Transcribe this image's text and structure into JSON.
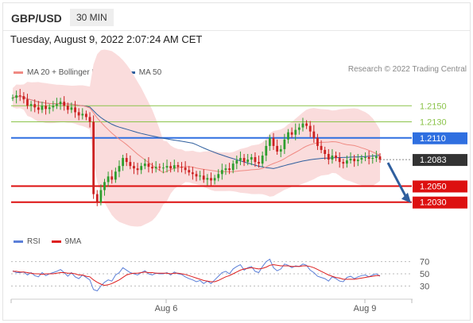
{
  "header": {
    "symbol": "GBP/USD",
    "timeframe": "30 MIN"
  },
  "timestamp": "Tuesday, August 9, 2022 2:07:24 AM CET",
  "legend_main": [
    {
      "label": "MA 20 + Bollinger Bands",
      "color": "#f08a83"
    },
    {
      "label": "MA 50",
      "color": "#2f5f9e"
    }
  ],
  "credit": "Research © 2022 Trading Central",
  "legend_rsi": [
    {
      "label": "RSI",
      "color": "#5b7fd8"
    },
    {
      "label": "9MA",
      "color": "#dd1f1f"
    }
  ],
  "colors": {
    "upCandle": "#2e9e2e",
    "downCandle": "#cc2020",
    "band": "#fadcdc",
    "resistance": "#8bc34a",
    "pivot": "#2f6fe0",
    "support": "#dd1010",
    "current": "#333333",
    "arrow": "#2f5f9e"
  },
  "chart_data": {
    "type": "candlestick",
    "ylim": [
      1.2005,
      1.2175
    ],
    "x_ticks": [
      "Aug 6",
      "Aug 9"
    ],
    "levels": [
      {
        "value": "1.2150",
        "kind": "resistance"
      },
      {
        "value": "1.2130",
        "kind": "resistance"
      },
      {
        "value": "1.2110",
        "kind": "pivot"
      },
      {
        "value": "1.2083",
        "kind": "current"
      },
      {
        "value": "1.2050",
        "kind": "support"
      },
      {
        "value": "1.2030",
        "kind": "support"
      }
    ],
    "rsi_ticks": [
      "70",
      "50",
      "30"
    ],
    "close": [
      1.216,
      1.2163,
      1.2162,
      1.2158,
      1.215,
      1.2152,
      1.2148,
      1.2145,
      1.215,
      1.2146,
      1.2148,
      1.215,
      1.2152,
      1.2155,
      1.215,
      1.2145,
      1.2148,
      1.2142,
      1.2138,
      1.214,
      1.2136,
      1.213,
      1.204,
      1.203,
      1.2045,
      1.2055,
      1.2062,
      1.2058,
      1.2068,
      1.2075,
      1.2085,
      1.208,
      1.2075,
      1.2072,
      1.207,
      1.2075,
      1.2078,
      1.2074,
      1.2072,
      1.2074,
      1.2073,
      1.2073,
      1.2075,
      1.2072,
      1.2076,
      1.2074,
      1.2073,
      1.207,
      1.2067,
      1.2065,
      1.2062,
      1.2063,
      1.2058,
      1.206,
      1.2057,
      1.206,
      1.2065,
      1.207,
      1.2072,
      1.207,
      1.2078,
      1.2082,
      1.2085,
      1.208,
      1.2083,
      1.2086,
      1.208,
      1.2078,
      1.2088,
      1.21,
      1.211,
      1.21,
      1.2093,
      1.2096,
      1.2108,
      1.2117,
      1.2114,
      1.212,
      1.2123,
      1.2128,
      1.2125,
      1.2118,
      1.211,
      1.21,
      1.2095,
      1.209,
      1.2083,
      1.2088,
      1.2085,
      1.208,
      1.2078,
      1.2082,
      1.2084,
      1.2081,
      1.2083,
      1.2085,
      1.2086,
      1.2084,
      1.2085,
      1.2087,
      1.2083
    ],
    "rsi": [
      55,
      52,
      52,
      53,
      48,
      52,
      47,
      45,
      52,
      47,
      50,
      52,
      54,
      57,
      52,
      46,
      52,
      45,
      42,
      48,
      44,
      40,
      24,
      22,
      30,
      36,
      40,
      38,
      48,
      52,
      60,
      56,
      52,
      50,
      48,
      52,
      55,
      50,
      48,
      51,
      50,
      50,
      52,
      48,
      53,
      50,
      49,
      45,
      42,
      40,
      37,
      39,
      34,
      38,
      34,
      40,
      46,
      52,
      54,
      50,
      58,
      62,
      65,
      56,
      60,
      62,
      54,
      52,
      62,
      70,
      74,
      60,
      55,
      58,
      66,
      64,
      60,
      63,
      62,
      66,
      64,
      56,
      52,
      46,
      44,
      42,
      38,
      45,
      42,
      38,
      37,
      44,
      46,
      42,
      45,
      47,
      48,
      45,
      48,
      50,
      46
    ],
    "rsi_ma": [
      54,
      54,
      53,
      53,
      52,
      51,
      50,
      50,
      49,
      50,
      50,
      50,
      51,
      52,
      52,
      51,
      51,
      50,
      48,
      48,
      46,
      45,
      40,
      36,
      33,
      31,
      32,
      34,
      37,
      40,
      44,
      48,
      50,
      51,
      51,
      52,
      53,
      52,
      52,
      51,
      51,
      51,
      51,
      50,
      51,
      51,
      50,
      49,
      47,
      45,
      43,
      41,
      39,
      38,
      37,
      37,
      39,
      42,
      45,
      47,
      50,
      53,
      56,
      58,
      59,
      60,
      59,
      58,
      59,
      61,
      64,
      65,
      64,
      63,
      63,
      63,
      62,
      62,
      62,
      63,
      63,
      62,
      60,
      57,
      54,
      51,
      48,
      46,
      44,
      43,
      41,
      41,
      41,
      41,
      42,
      43,
      44,
      45,
      46,
      47,
      47
    ]
  }
}
